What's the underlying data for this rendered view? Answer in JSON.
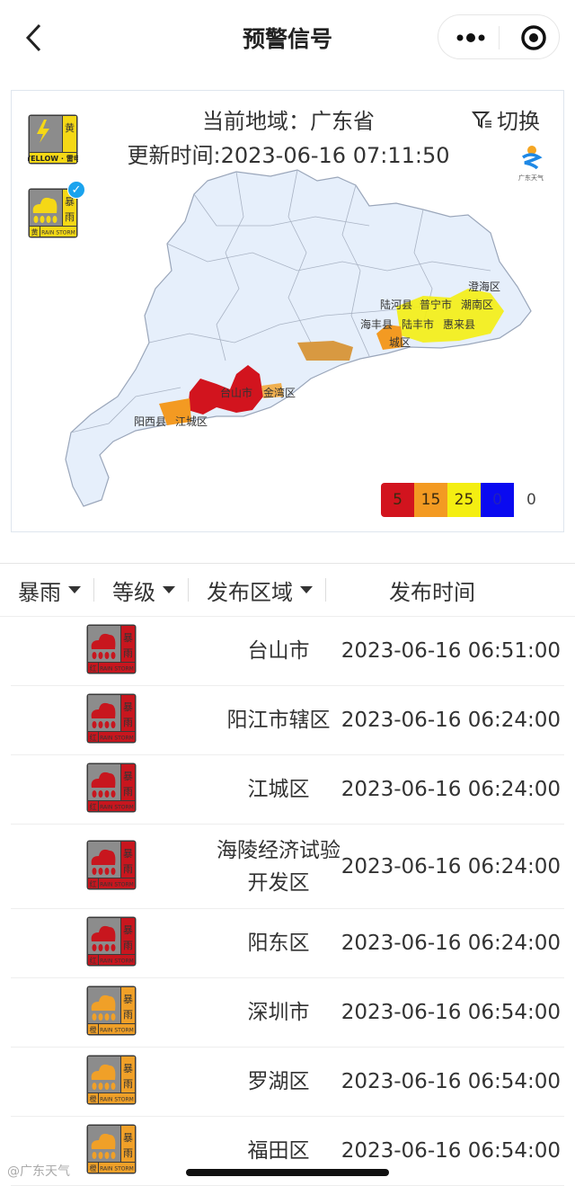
{
  "header": {
    "title": "预警信号",
    "back_icon": "chevron-left-icon",
    "more_icon": "more-dots-icon",
    "record_icon": "target-icon"
  },
  "card": {
    "region": "当前地域：广东省",
    "update": "更新时间:2023-06-16 07:11:50",
    "switch_label": "切换",
    "logo_text": "广东天气",
    "signals": [
      {
        "type": "雷电",
        "level": "黄",
        "english": "YELLOW",
        "color": "#f5d816",
        "selected": false
      },
      {
        "type": "暴雨",
        "level": "黄",
        "english": "RAIN STORM",
        "color": "#f5d816",
        "selected": true
      }
    ],
    "map_labels": [
      "阳西县",
      "江城区",
      "台山市",
      "金湾区",
      "陆河县",
      "普宁市",
      "海丰县",
      "陆丰市",
      "惠来县",
      "城区",
      "潮南区",
      "澄海区"
    ],
    "legend": [
      {
        "value": "5",
        "color": "#d2141e"
      },
      {
        "value": "15",
        "color": "#f39a22"
      },
      {
        "value": "25",
        "color": "#f4ee12"
      },
      {
        "value": "0",
        "color": "#0a0af0"
      }
    ],
    "legend_extra": "0"
  },
  "filters": [
    {
      "label": "暴雨",
      "dropdown": true
    },
    {
      "label": "等级",
      "dropdown": true
    },
    {
      "label": "发布区域",
      "dropdown": true
    },
    {
      "label": "发布时间",
      "dropdown": false
    }
  ],
  "rows": [
    {
      "area": "台山市",
      "time": "2023-06-16 06:51:00",
      "level": "红",
      "color": "#c8161e"
    },
    {
      "area": "阳江市辖区",
      "time": "2023-06-16 06:24:00",
      "level": "红",
      "color": "#c8161e"
    },
    {
      "area": "江城区",
      "time": "2023-06-16 06:24:00",
      "level": "红",
      "color": "#c8161e"
    },
    {
      "area": "海陵经济试验开发区",
      "time": "2023-06-16 06:24:00",
      "level": "红",
      "color": "#c8161e"
    },
    {
      "area": "阳东区",
      "time": "2023-06-16 06:24:00",
      "level": "红",
      "color": "#c8161e"
    },
    {
      "area": "深圳市",
      "time": "2023-06-16 06:54:00",
      "level": "橙",
      "color": "#f0a028"
    },
    {
      "area": "罗湖区",
      "time": "2023-06-16 06:54:00",
      "level": "橙",
      "color": "#f0a028"
    },
    {
      "area": "福田区",
      "time": "2023-06-16 06:54:00",
      "level": "橙",
      "color": "#f0a028"
    }
  ],
  "rainstorm_label": "暴雨",
  "rainstorm_en": "RAIN STORM",
  "watermark": "@广东天气"
}
